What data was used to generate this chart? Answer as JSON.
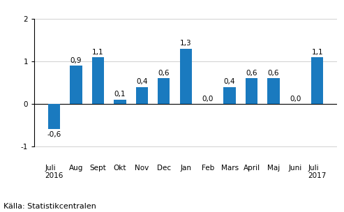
{
  "categories": [
    "Juli\n2016",
    "Aug",
    "Sept",
    "Okt",
    "Nov",
    "Dec",
    "Jan",
    "Feb",
    "Mars",
    "April",
    "Maj",
    "Juni",
    "Juli\n2017"
  ],
  "values": [
    -0.6,
    0.9,
    1.1,
    0.1,
    0.4,
    0.6,
    1.3,
    0.0,
    0.4,
    0.6,
    0.6,
    0.0,
    1.1
  ],
  "bar_color": "#1a7abf",
  "ylim": [
    -1.3,
    2.3
  ],
  "yticks": [
    -1,
    0,
    1,
    2
  ],
  "background_color": "#ffffff",
  "source_text": "Källa: Statistikcentralen",
  "bar_width": 0.55,
  "grid_color": "#d0d0d0",
  "label_fontsize": 7.5,
  "tick_fontsize": 7.5,
  "source_fontsize": 8.0
}
